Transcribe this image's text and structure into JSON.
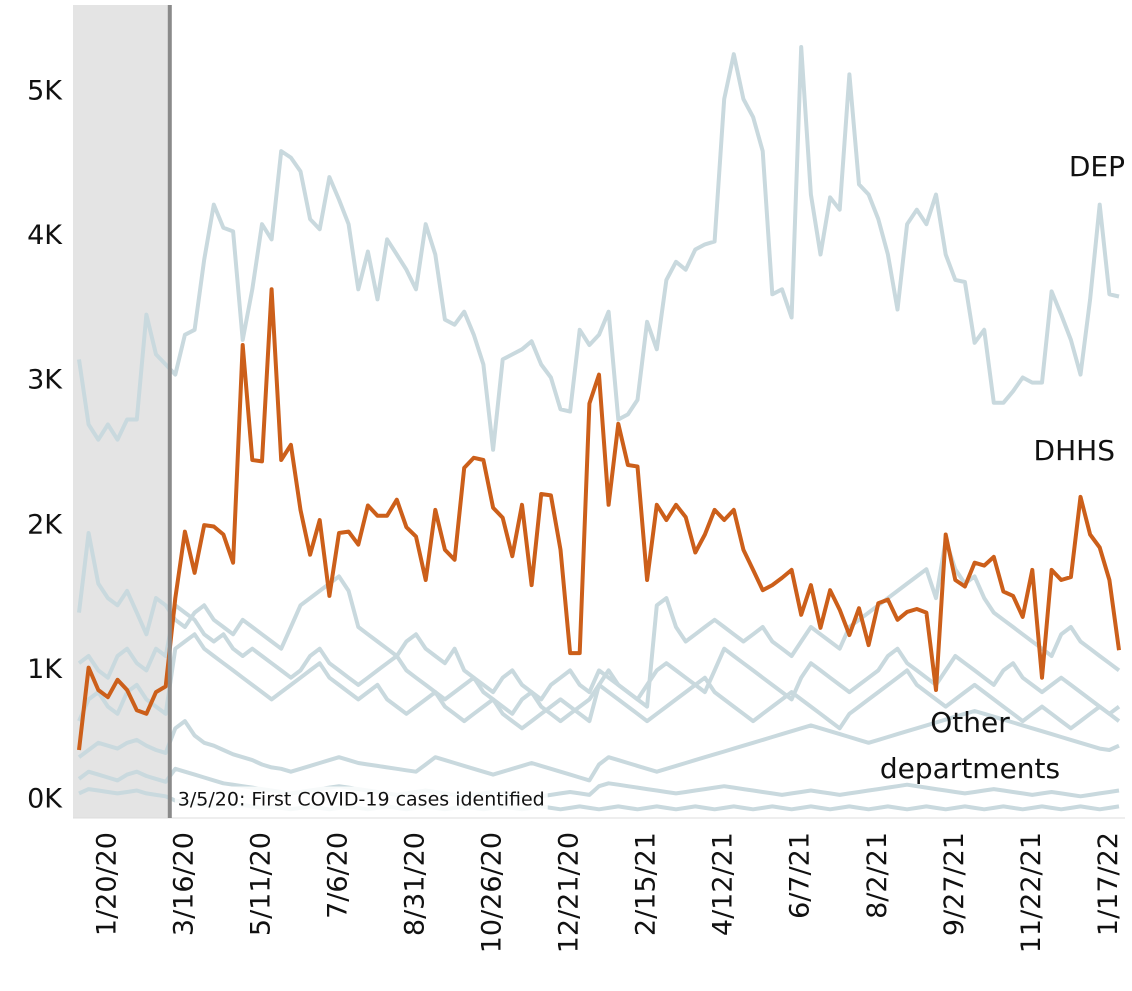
{
  "chart_data": {
    "type": "line",
    "x": [
      "12/30/19",
      "1/6/20",
      "1/13/20",
      "1/20/20",
      "1/27/20",
      "2/3/20",
      "2/10/20",
      "2/17/20",
      "2/24/20",
      "3/2/20",
      "3/9/20",
      "3/16/20",
      "3/23/20",
      "3/30/20",
      "4/6/20",
      "4/13/20",
      "4/20/20",
      "4/27/20",
      "5/4/20",
      "5/11/20",
      "5/18/20",
      "5/25/20",
      "6/1/20",
      "6/8/20",
      "6/15/20",
      "6/22/20",
      "6/29/20",
      "7/6/20",
      "7/13/20",
      "7/20/20",
      "7/27/20",
      "8/3/20",
      "8/10/20",
      "8/17/20",
      "8/24/20",
      "8/31/20",
      "9/7/20",
      "9/14/20",
      "9/21/20",
      "9/28/20",
      "10/5/20",
      "10/12/20",
      "10/19/20",
      "10/26/20",
      "11/2/20",
      "11/9/20",
      "11/16/20",
      "11/23/20",
      "11/30/20",
      "12/7/20",
      "12/14/20",
      "12/21/20",
      "12/28/20",
      "1/4/21",
      "1/11/21",
      "1/18/21",
      "1/25/21",
      "2/1/21",
      "2/8/21",
      "2/15/21",
      "2/22/21",
      "3/1/21",
      "3/8/21",
      "3/15/21",
      "3/22/21",
      "3/29/21",
      "4/5/21",
      "4/12/21",
      "4/19/21",
      "4/26/21",
      "5/3/21",
      "5/10/21",
      "5/17/21",
      "5/24/21",
      "5/31/21",
      "6/7/21",
      "6/14/21",
      "6/21/21",
      "6/28/21",
      "7/5/21",
      "7/12/21",
      "7/19/21",
      "7/26/21",
      "8/2/21",
      "8/9/21",
      "8/16/21",
      "8/23/21",
      "8/30/21",
      "9/6/21",
      "9/13/21",
      "9/20/21",
      "9/27/21",
      "10/4/21",
      "10/11/21",
      "10/18/21",
      "10/25/21",
      "11/1/21",
      "11/8/21",
      "11/15/21",
      "11/22/21",
      "11/29/21",
      "12/6/21",
      "12/13/21",
      "12/20/21",
      "12/27/21",
      "1/3/22",
      "1/10/22",
      "1/17/22",
      "1/24/22"
    ],
    "xticks": [
      "1/20/20",
      "3/16/20",
      "5/11/20",
      "7/6/20",
      "8/31/20",
      "10/26/20",
      "12/21/20",
      "2/15/21",
      "4/12/21",
      "6/7/21",
      "8/2/21",
      "9/27/21",
      "11/22/21",
      "1/17/22"
    ],
    "ylim": [
      -20,
      5600
    ],
    "yticks": [
      {
        "value": 0,
        "label": "0K"
      },
      {
        "value": 1000,
        "label": "1K"
      },
      {
        "value": 2000,
        "label": "2K"
      },
      {
        "value": 3000,
        "label": "3K"
      },
      {
        "value": 4000,
        "label": "4K"
      },
      {
        "value": 5000,
        "label": "5K"
      }
    ],
    "annotation": {
      "x": "3/5/20",
      "text": "3/5/20: First COVID-19 cases identified"
    },
    "series": [
      {
        "name": "DEP",
        "color": "#c9d9de",
        "values": [
          3150,
          2700,
          2595,
          2700,
          2595,
          2735,
          2735,
          3460,
          3185,
          3115,
          3045,
          3320,
          3355,
          3840,
          4220,
          4060,
          4035,
          3285,
          3635,
          4085,
          3980,
          4590,
          4545,
          4450,
          4120,
          4050,
          4410,
          4255,
          4085,
          3635,
          3895,
          3565,
          3980,
          3875,
          3770,
          3635,
          4085,
          3875,
          3425,
          3390,
          3480,
          3320,
          3115,
          2525,
          3150,
          3185,
          3220,
          3275,
          3115,
          3025,
          2805,
          2790,
          3355,
          3250,
          3320,
          3480,
          2735,
          2770,
          2870,
          3410,
          3220,
          3700,
          3825,
          3770,
          3910,
          3945,
          3965,
          4950,
          5260,
          4950,
          4825,
          4590,
          3600,
          3635,
          3440,
          5310,
          4290,
          3875,
          4270,
          4185,
          5120,
          4360,
          4290,
          4120,
          3875,
          3495,
          4085,
          4185,
          4085,
          4290,
          3875,
          3700,
          3685,
          3265,
          3355,
          2850,
          2850,
          2930,
          3025,
          2990,
          2990,
          3620,
          3460,
          3285,
          3045,
          3565,
          4220,
          3600,
          3585
        ]
      },
      {
        "name": "DHHS",
        "color": "#cc5f1a",
        "values": [
          450,
          1020,
          865,
          815,
          935,
          865,
          725,
          700,
          850,
          890,
          1500,
          1960,
          1675,
          2005,
          1995,
          1940,
          1745,
          3250,
          2455,
          2445,
          3635,
          2455,
          2560,
          2110,
          1800,
          2040,
          1515,
          1950,
          1960,
          1870,
          2140,
          2070,
          2070,
          2180,
          1990,
          1925,
          1625,
          2110,
          1835,
          1765,
          2400,
          2470,
          2455,
          2125,
          2055,
          1790,
          2145,
          1590,
          2220,
          2210,
          1835,
          1120,
          1120,
          2845,
          3045,
          2145,
          2705,
          2420,
          2410,
          1625,
          2145,
          2040,
          2145,
          2060,
          1815,
          1940,
          2110,
          2040,
          2110,
          1835,
          1695,
          1555,
          1590,
          1640,
          1695,
          1385,
          1590,
          1295,
          1555,
          1420,
          1245,
          1430,
          1175,
          1465,
          1490,
          1350,
          1405,
          1425,
          1400,
          865,
          1940,
          1625,
          1580,
          1745,
          1725,
          1785,
          1545,
          1515,
          1370,
          1695,
          950,
          1695,
          1625,
          1645,
          2200,
          1940,
          1850,
          1625,
          1140
        ]
      }
    ],
    "others": {
      "name": "Other departments",
      "color": "#c9d9de",
      "values": [
        [
          1400,
          1950,
          1600,
          1500,
          1450,
          1550,
          1400,
          1250,
          1500,
          1450,
          1350,
          1300,
          1400,
          1450,
          1350,
          1300,
          1250,
          1350,
          1300,
          1250,
          1200,
          1150,
          1300,
          1450,
          1500,
          1550,
          1600,
          1650,
          1550,
          1300,
          1250,
          1200,
          1150,
          1100,
          1200,
          1250,
          1150,
          1100,
          1050,
          1150,
          1000,
          950,
          900,
          850,
          950,
          1000,
          900,
          850,
          800,
          900,
          950,
          1000,
          900,
          850,
          1000,
          950,
          900,
          850,
          800,
          750,
          1450,
          1500,
          1300,
          1200,
          1250,
          1300,
          1350,
          1300,
          1250,
          1200,
          1250,
          1300,
          1200,
          1150,
          1100,
          1200,
          1300,
          1250,
          1200,
          1150,
          1300,
          1350,
          1400,
          1450,
          1500,
          1550,
          1600,
          1650,
          1700,
          1500,
          1900,
          1700,
          1600,
          1650,
          1500,
          1400,
          1350,
          1300,
          1250,
          1200,
          1150,
          1100,
          1250,
          1300,
          1200,
          1150,
          1100,
          1050,
          1000
        ],
        [
          1050,
          1100,
          1000,
          950,
          1100,
          1150,
          1050,
          1000,
          1150,
          1100,
          1450,
          1400,
          1350,
          1250,
          1200,
          1250,
          1150,
          1100,
          1150,
          1100,
          1050,
          1000,
          950,
          1000,
          1100,
          1150,
          1050,
          1000,
          950,
          900,
          950,
          1000,
          1050,
          1100,
          1000,
          950,
          900,
          850,
          800,
          850,
          900,
          950,
          850,
          800,
          750,
          700,
          800,
          850,
          750,
          700,
          650,
          700,
          750,
          800,
          900,
          1000,
          900,
          850,
          800,
          900,
          1000,
          1050,
          1000,
          950,
          900,
          850,
          1000,
          1150,
          1100,
          1050,
          1000,
          950,
          900,
          850,
          800,
          950,
          1050,
          1000,
          950,
          900,
          850,
          900,
          950,
          1000,
          1100,
          1150,
          1050,
          1000,
          950,
          900,
          1000,
          1100,
          1050,
          1000,
          950,
          900,
          1000,
          1050,
          950,
          900,
          850,
          900,
          950,
          900,
          850,
          800,
          750,
          700,
          750
        ],
        [
          650,
          800,
          850,
          750,
          700,
          850,
          900,
          800,
          750,
          700,
          1150,
          1200,
          1250,
          1150,
          1100,
          1050,
          1000,
          950,
          900,
          850,
          800,
          850,
          900,
          950,
          1000,
          1050,
          950,
          900,
          850,
          800,
          850,
          900,
          800,
          750,
          700,
          750,
          800,
          850,
          750,
          700,
          650,
          700,
          750,
          800,
          700,
          650,
          600,
          650,
          700,
          750,
          800,
          750,
          700,
          650,
          900,
          850,
          800,
          750,
          700,
          650,
          700,
          750,
          800,
          850,
          900,
          950,
          850,
          800,
          750,
          700,
          650,
          700,
          750,
          800,
          850,
          800,
          750,
          700,
          650,
          600,
          700,
          750,
          800,
          850,
          900,
          950,
          1000,
          900,
          850,
          800,
          750,
          800,
          850,
          900,
          850,
          800,
          750,
          700,
          650,
          700,
          750,
          700,
          650,
          600,
          650,
          700,
          750,
          700,
          650
        ],
        [
          400,
          450,
          500,
          480,
          460,
          500,
          520,
          480,
          450,
          430,
          600,
          650,
          550,
          500,
          480,
          450,
          420,
          400,
          380,
          350,
          330,
          320,
          300,
          320,
          340,
          360,
          380,
          400,
          380,
          360,
          350,
          340,
          330,
          320,
          310,
          300,
          350,
          400,
          380,
          360,
          340,
          320,
          300,
          280,
          300,
          320,
          340,
          360,
          340,
          320,
          300,
          280,
          260,
          240,
          350,
          400,
          380,
          360,
          340,
          320,
          300,
          320,
          340,
          360,
          380,
          400,
          420,
          440,
          460,
          480,
          500,
          520,
          540,
          560,
          580,
          600,
          620,
          600,
          580,
          560,
          540,
          520,
          500,
          520,
          540,
          560,
          580,
          600,
          620,
          640,
          660,
          680,
          700,
          720,
          700,
          680,
          660,
          640,
          620,
          600,
          580,
          560,
          540,
          520,
          500,
          480,
          460,
          450,
          480
        ],
        [
          250,
          300,
          280,
          260,
          240,
          280,
          300,
          270,
          250,
          230,
          320,
          300,
          280,
          260,
          240,
          220,
          210,
          200,
          190,
          180,
          170,
          160,
          150,
          160,
          170,
          180,
          190,
          200,
          190,
          180,
          170,
          160,
          150,
          140,
          150,
          160,
          170,
          160,
          150,
          140,
          130,
          140,
          150,
          160,
          150,
          140,
          130,
          120,
          130,
          140,
          150,
          160,
          150,
          140,
          200,
          220,
          210,
          200,
          190,
          180,
          170,
          160,
          150,
          160,
          170,
          180,
          190,
          200,
          190,
          180,
          170,
          160,
          150,
          140,
          150,
          160,
          170,
          160,
          150,
          140,
          150,
          160,
          170,
          180,
          190,
          200,
          210,
          200,
          190,
          180,
          170,
          160,
          150,
          160,
          170,
          180,
          170,
          160,
          150,
          140,
          150,
          160,
          150,
          140,
          130,
          140,
          150,
          160,
          170
        ],
        [
          150,
          180,
          170,
          160,
          150,
          160,
          170,
          150,
          140,
          130,
          100,
          90,
          80,
          70,
          60,
          50,
          60,
          70,
          60,
          50,
          60,
          50,
          40,
          50,
          60,
          50,
          40,
          50,
          60,
          50,
          40,
          50,
          60,
          50,
          40,
          50,
          60,
          50,
          40,
          50,
          60,
          50,
          40,
          50,
          60,
          50,
          40,
          50,
          60,
          50,
          40,
          50,
          60,
          50,
          40,
          50,
          60,
          50,
          40,
          50,
          60,
          50,
          40,
          50,
          60,
          50,
          40,
          50,
          60,
          50,
          40,
          50,
          60,
          50,
          40,
          50,
          60,
          50,
          40,
          50,
          60,
          50,
          40,
          50,
          60,
          50,
          40,
          50,
          60,
          50,
          40,
          50,
          60,
          50,
          40,
          50,
          60,
          50,
          40,
          50,
          60,
          50,
          40,
          50,
          60,
          50,
          40,
          50,
          60
        ]
      ]
    }
  }
}
